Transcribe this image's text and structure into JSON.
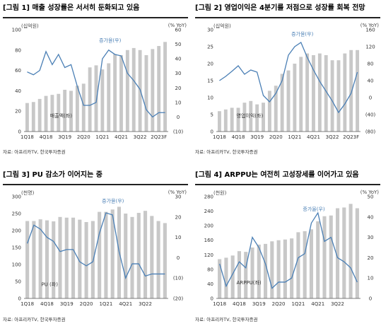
{
  "charts": [
    {
      "title": "[그림 1] 매출 성장률은 서서히 둔화되고 있음",
      "source": "자료: 아프리카TV, 한국투자증권",
      "chart_data": {
        "type": "bar+line",
        "left_unit": "(십억원)",
        "right_unit": "(% YoY)",
        "bar_label": "매출액(좌)",
        "line_label": "증가율(우)",
        "y_left": {
          "min": 0,
          "max": 100,
          "ticks": [
            0,
            20,
            40,
            60,
            80,
            100
          ]
        },
        "y_right": {
          "min": -10,
          "max": 60,
          "ticks": [
            "(10)",
            "0",
            "10",
            "20",
            "30",
            "40",
            "50",
            "60"
          ]
        },
        "x_tick_labels": [
          "1Q18",
          "4Q18",
          "3Q19",
          "2Q20",
          "1Q21",
          "4Q21",
          "3Q22",
          "2Q23F"
        ],
        "x_tick_index": [
          0,
          3,
          6,
          9,
          12,
          15,
          18,
          21
        ],
        "bars": [
          28,
          29,
          32,
          35,
          36,
          37,
          41,
          40,
          45,
          47,
          63,
          65,
          61,
          67,
          76,
          75,
          80,
          82,
          80,
          75,
          81,
          84,
          88
        ],
        "line": [
          31,
          29,
          32,
          45,
          36,
          43,
          34,
          36,
          21,
          8,
          8,
          10,
          40,
          46,
          43,
          42,
          30,
          25,
          19,
          5,
          0,
          3,
          3
        ]
      }
    },
    {
      "title": "[그림 2] 영업이익은 4분기를 저점으로 성장률 회복 전망",
      "source": "자료: 아프리카TV, 한국투자증권",
      "chart_data": {
        "type": "bar+line",
        "left_unit": "(십억원)",
        "right_unit": "(% YoY)",
        "bar_label": "영업이익(좌)",
        "line_label": "증가율(우)",
        "y_left": {
          "min": 0,
          "max": 30,
          "ticks": [
            0,
            5,
            10,
            15,
            20,
            25,
            30
          ]
        },
        "y_right": {
          "min": -80,
          "max": 160,
          "ticks": [
            "(80)",
            "(40)",
            "0",
            "40",
            "80",
            "120",
            "160"
          ]
        },
        "x_tick_labels": [
          "1Q18",
          "4Q18",
          "3Q19",
          "2Q20",
          "1Q21",
          "4Q21",
          "3Q22",
          "2Q23F"
        ],
        "x_tick_index": [
          0,
          3,
          6,
          9,
          12,
          15,
          18,
          21
        ],
        "bars": [
          6,
          6.5,
          7,
          7,
          8.5,
          9,
          8,
          8.5,
          12,
          13.5,
          17,
          18,
          20,
          22,
          23,
          22.5,
          23,
          22.5,
          21,
          21,
          23,
          24,
          24
        ],
        "line": [
          40,
          50,
          62,
          75,
          55,
          65,
          60,
          5,
          -10,
          10,
          40,
          100,
          120,
          130,
          95,
          65,
          38,
          15,
          -8,
          -35,
          -15,
          10,
          60
        ]
      }
    },
    {
      "title": "[그림 3] PU 감소가 이어지는 중",
      "source": "자료: 아프리카TV, 한국투자증권",
      "chart_data": {
        "type": "bar+line",
        "left_unit": "(천명)",
        "right_unit": "(% YoY)",
        "bar_label": "PU (좌)",
        "line_label": "증가율(우)",
        "y_left": {
          "min": 0,
          "max": 300,
          "ticks": [
            0,
            50,
            100,
            150,
            200,
            250,
            300
          ]
        },
        "y_right": {
          "min": -20,
          "max": 30,
          "ticks": [
            "(20)",
            "(10)",
            "0",
            "10",
            "20",
            "30"
          ]
        },
        "x_tick_labels": [
          "1Q18",
          "4Q18",
          "3Q19",
          "2Q20",
          "1Q21",
          "4Q21",
          "3Q22"
        ],
        "x_tick_index": [
          0,
          3,
          6,
          9,
          12,
          15,
          18
        ],
        "bars": [
          228,
          228,
          233,
          230,
          227,
          240,
          238,
          238,
          232,
          225,
          228,
          255,
          255,
          262,
          270,
          250,
          240,
          252,
          258,
          243,
          228,
          222
        ],
        "line": [
          7,
          16,
          14,
          10,
          8,
          3,
          4,
          4,
          -2,
          -4,
          -2,
          12,
          22,
          21,
          3,
          -10,
          -3,
          -3,
          -9,
          -8,
          -8,
          -8
        ]
      }
    },
    {
      "title": "[그림 4] ARPPU는 여전히 고성장세를 이어가고 있음",
      "source": "자료: 아프리카TV, 한국투자증권",
      "chart_data": {
        "type": "bar+line",
        "left_unit": "(천원)",
        "right_unit": "(% YoY)",
        "bar_label": "ARPPU(좌)",
        "line_label": "증가율(우)",
        "y_left": {
          "min": 0,
          "max": 280,
          "ticks": [
            0,
            40,
            80,
            120,
            160,
            200,
            240,
            280
          ]
        },
        "y_right": {
          "min": 0,
          "max": 50,
          "ticks": [
            "0",
            "10",
            "20",
            "30",
            "40",
            "50"
          ]
        },
        "x_tick_labels": [
          "1Q18",
          "4Q18",
          "3Q19",
          "2Q20",
          "1Q21",
          "4Q21",
          "3Q22"
        ],
        "x_tick_index": [
          0,
          3,
          6,
          9,
          12,
          15,
          18
        ],
        "bars": [
          108,
          112,
          118,
          130,
          128,
          140,
          148,
          150,
          157,
          160,
          162,
          165,
          182,
          185,
          190,
          212,
          226,
          228,
          248,
          250,
          260,
          248
        ],
        "line": [
          17,
          6,
          12,
          18,
          15,
          30,
          25,
          17,
          5,
          8,
          8,
          10,
          20,
          22,
          37,
          42,
          28,
          30,
          20,
          18,
          15,
          8
        ]
      }
    }
  ]
}
